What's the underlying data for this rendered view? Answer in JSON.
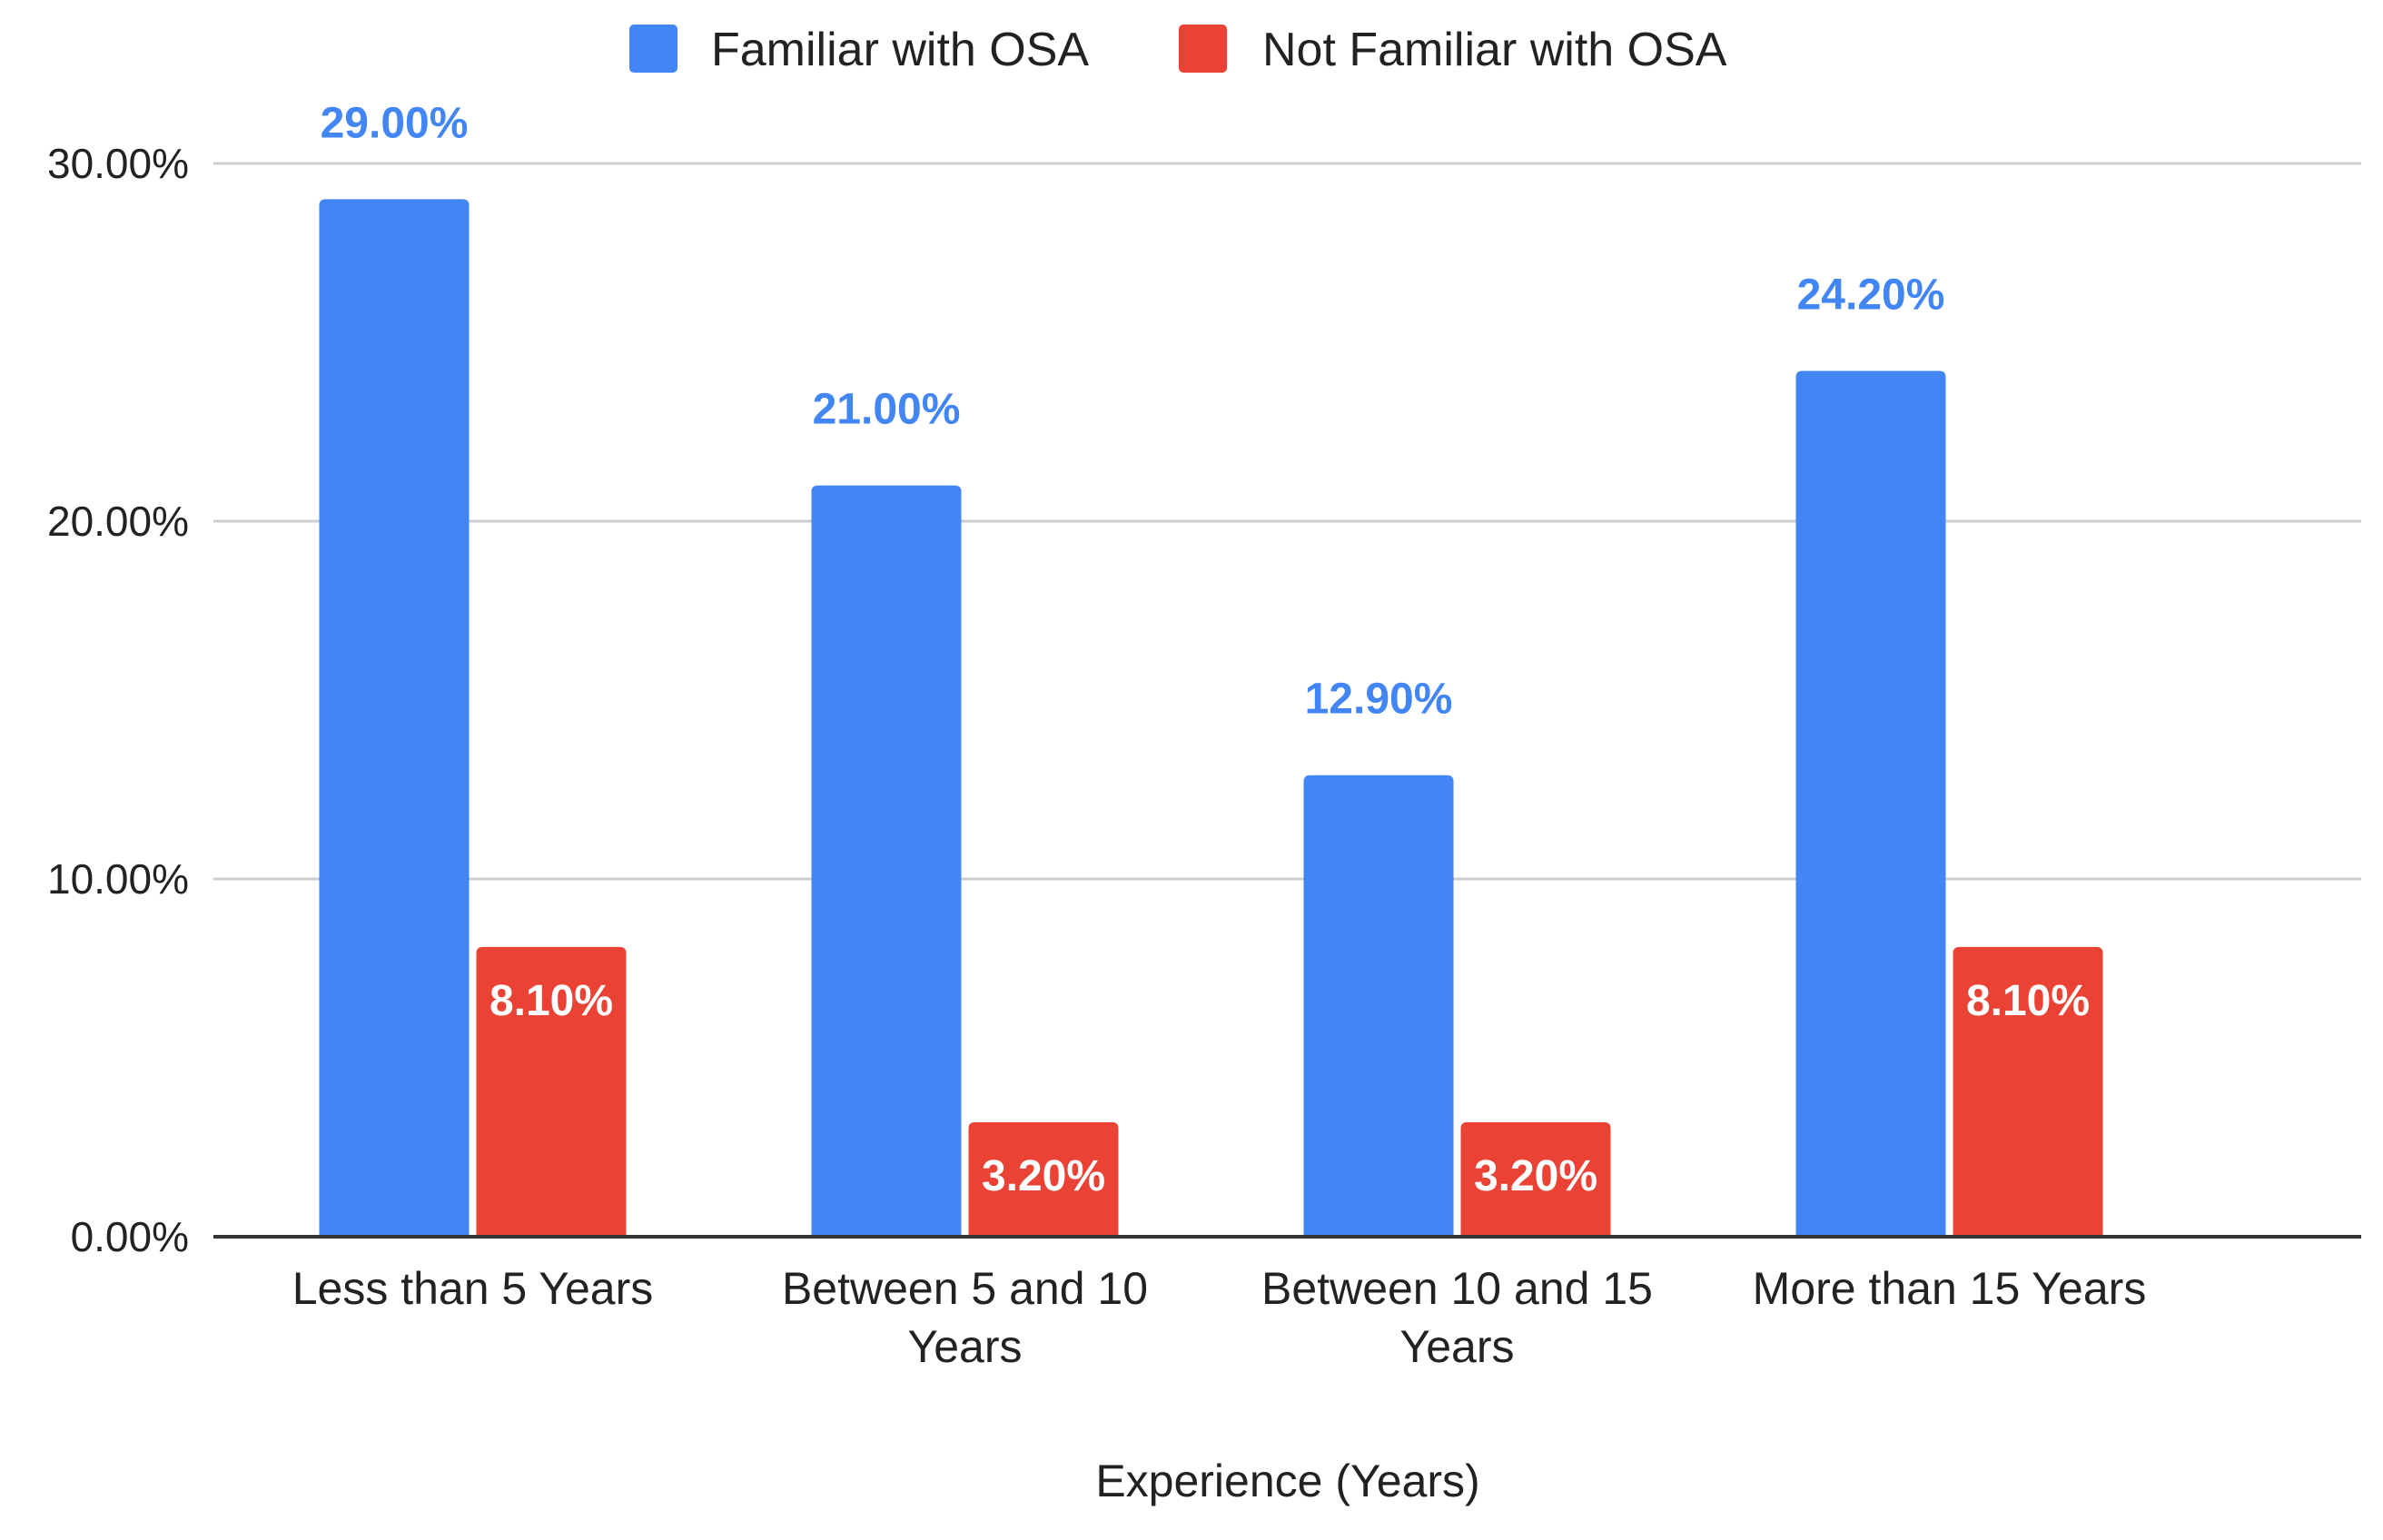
{
  "chart_data": {
    "type": "bar",
    "title": "",
    "xlabel": "Experience (Years)",
    "ylabel": "",
    "ylim": [
      0,
      30
    ],
    "yticks": [
      {
        "value": 0,
        "label": "0.00%"
      },
      {
        "value": 10,
        "label": "10.00%"
      },
      {
        "value": 20,
        "label": "20.00%"
      },
      {
        "value": 30,
        "label": "30.00%"
      }
    ],
    "categories": [
      [
        "Less than 5 Years"
      ],
      [
        "Between 5 and 10",
        "Years"
      ],
      [
        "Between 10 and 15",
        "Years"
      ],
      [
        "More than 15 Years"
      ]
    ],
    "series": [
      {
        "name": "Familiar with OSA",
        "color": "#4285F4",
        "values": [
          29.0,
          21.0,
          12.9,
          24.2
        ],
        "labels": [
          "29.00%",
          "21.00%",
          "12.90%",
          "24.20%"
        ]
      },
      {
        "name": "Not Familiar with OSA",
        "color": "#EA4335",
        "values": [
          8.1,
          3.2,
          3.2,
          8.1
        ],
        "labels": [
          "8.10%",
          "3.20%",
          "3.20%",
          "8.10%"
        ]
      }
    ],
    "legend": "top-center",
    "grid": true
  }
}
